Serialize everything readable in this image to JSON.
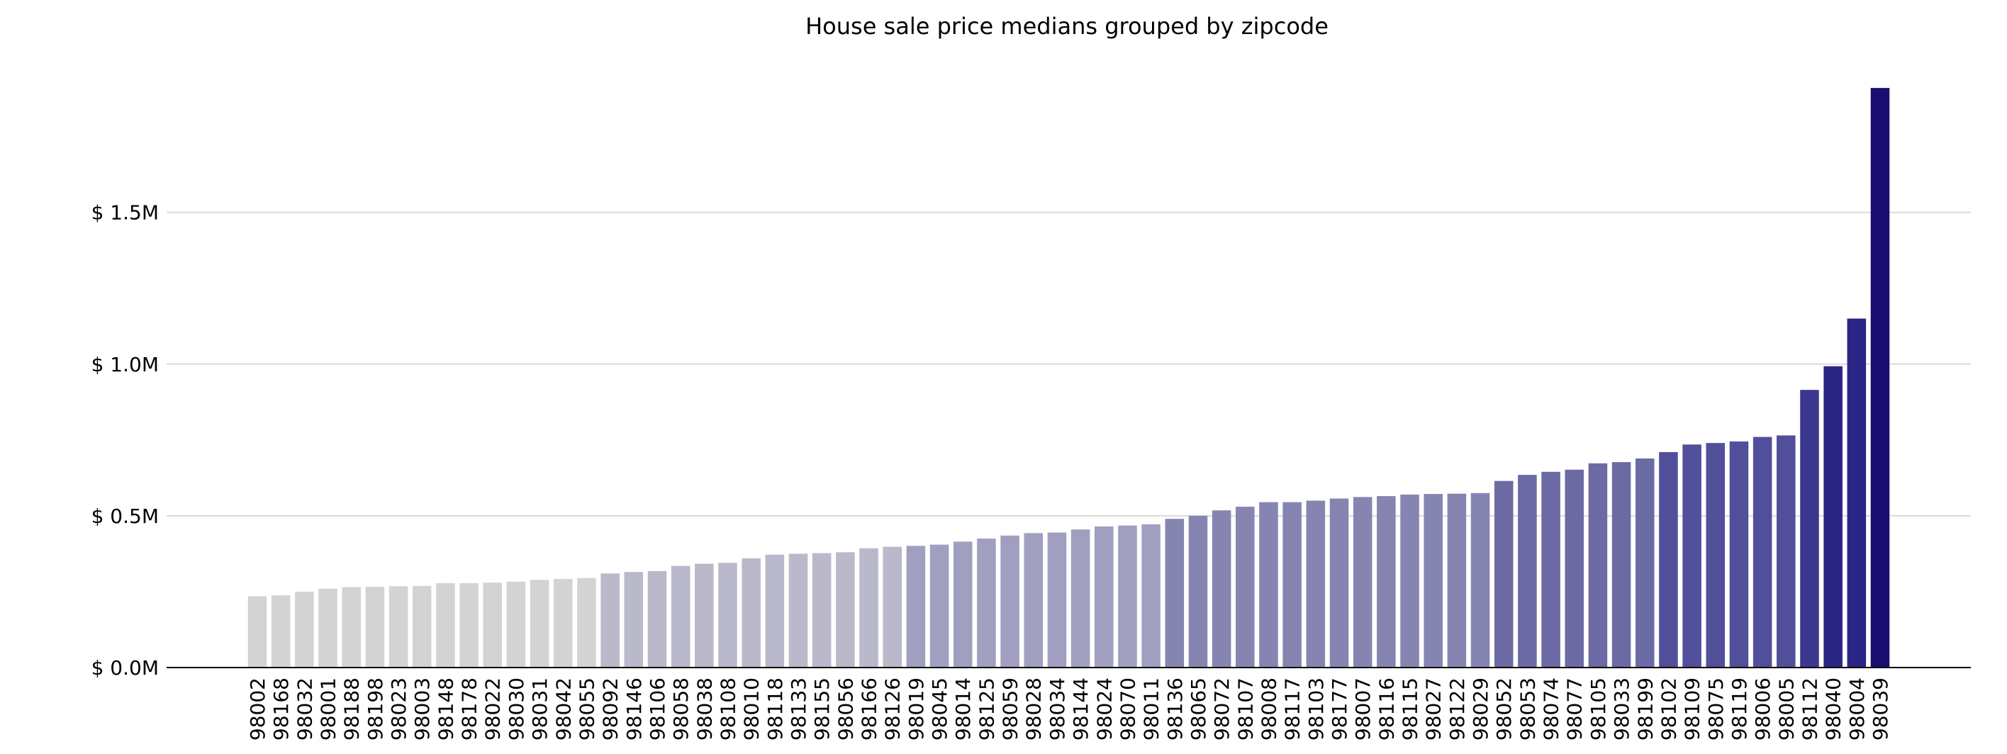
{
  "chart_data": {
    "type": "bar",
    "title": "House sale price medians grouped by zipcode",
    "xlabel": "",
    "ylabel": "",
    "ylim": [
      0,
      1950000
    ],
    "y_ticks": [
      {
        "value": 0,
        "label": "$ 0.0M"
      },
      {
        "value": 500000,
        "label": "$ 0.5M"
      },
      {
        "value": 1000000,
        "label": "$ 1.0M"
      },
      {
        "value": 1500000,
        "label": "$ 1.5M"
      }
    ],
    "grid": "horizontal",
    "categories": [
      "98002",
      "98168",
      "98032",
      "98001",
      "98188",
      "98198",
      "98023",
      "98003",
      "98148",
      "98178",
      "98022",
      "98030",
      "98031",
      "98042",
      "98055",
      "98092",
      "98146",
      "98106",
      "98058",
      "98038",
      "98108",
      "98010",
      "98118",
      "98133",
      "98155",
      "98056",
      "98166",
      "98126",
      "98019",
      "98045",
      "98014",
      "98125",
      "98059",
      "98028",
      "98034",
      "98144",
      "98024",
      "98070",
      "98011",
      "98136",
      "98065",
      "98072",
      "98107",
      "98008",
      "98117",
      "98103",
      "98177",
      "98007",
      "98116",
      "98115",
      "98027",
      "98122",
      "98029",
      "98052",
      "98053",
      "98074",
      "98077",
      "98105",
      "98033",
      "98199",
      "98102",
      "98109",
      "98075",
      "98119",
      "98006",
      "98005",
      "98112",
      "98040",
      "98004",
      "98039"
    ],
    "values": [
      235000,
      238000,
      250000,
      260000,
      265000,
      266000,
      268000,
      269000,
      278000,
      278000,
      280000,
      283000,
      289000,
      292000,
      295000,
      310000,
      315000,
      318000,
      335000,
      342000,
      345000,
      360000,
      372000,
      375000,
      377000,
      380000,
      393000,
      398000,
      401000,
      405000,
      415000,
      425000,
      435000,
      443000,
      445000,
      455000,
      465000,
      468000,
      472000,
      490000,
      500000,
      518000,
      530000,
      545000,
      545000,
      550000,
      557000,
      562000,
      565000,
      570000,
      572000,
      573000,
      575000,
      615000,
      635000,
      645000,
      652000,
      673000,
      677000,
      689000,
      710000,
      735000,
      740000,
      745000,
      760000,
      765000,
      915000,
      993000,
      1150000,
      1910000
    ],
    "colors": [
      "#d3d3d3",
      "#d3d3d3",
      "#d3d3d3",
      "#d3d3d3",
      "#d3d3d3",
      "#d3d3d3",
      "#d3d3d3",
      "#d3d3d3",
      "#d3d3d3",
      "#d3d3d3",
      "#d3d3d3",
      "#d3d3d3",
      "#d3d3d3",
      "#d3d3d3",
      "#d3d3d3",
      "#b9b9cb",
      "#b9b9cb",
      "#b9b9cb",
      "#b9b9cb",
      "#b9b9cb",
      "#b9b9cb",
      "#b9b9cb",
      "#b9b9cb",
      "#b9b9cb",
      "#b9b9cb",
      "#b9b9cb",
      "#b9b9cb",
      "#b9b9cb",
      "#a09fbf",
      "#a09fbf",
      "#a09fbf",
      "#a09fbf",
      "#a09fbf",
      "#a09fbf",
      "#a09fbf",
      "#a09fbf",
      "#a09fbf",
      "#a09fbf",
      "#a09fbf",
      "#8685b2",
      "#8685b2",
      "#8685b2",
      "#8685b2",
      "#8685b2",
      "#8685b2",
      "#8685b2",
      "#8685b2",
      "#8685b2",
      "#8685b2",
      "#8685b2",
      "#8685b2",
      "#8685b2",
      "#8685b2",
      "#6c6aa5",
      "#6c6aa5",
      "#6c6aa5",
      "#6c6aa5",
      "#6c6aa5",
      "#6c6aa5",
      "#6c6aa5",
      "#524f9a",
      "#524f9a",
      "#524f9a",
      "#524f9a",
      "#524f9a",
      "#524f9a",
      "#3c3890",
      "#2b2685",
      "#2b2685",
      "#1a0d72"
    ]
  }
}
